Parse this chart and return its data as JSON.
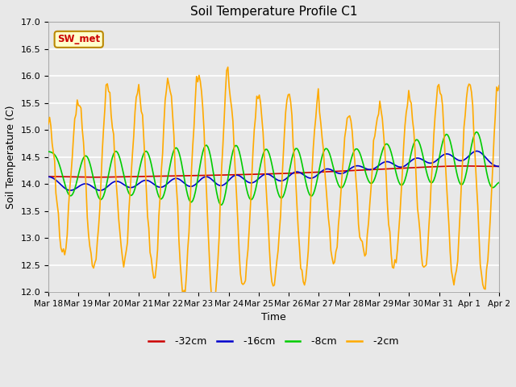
{
  "title": "Soil Temperature Profile C1",
  "xlabel": "Time",
  "ylabel": "Soil Temperature (C)",
  "ylim": [
    12.0,
    17.0
  ],
  "yticks": [
    12.0,
    12.5,
    13.0,
    13.5,
    14.0,
    14.5,
    15.0,
    15.5,
    16.0,
    16.5,
    17.0
  ],
  "x_labels": [
    "Mar 18",
    "Mar 19",
    "Mar 20",
    "Mar 21",
    "Mar 22",
    "Mar 23",
    "Mar 24",
    "Mar 25",
    "Mar 26",
    "Mar 27",
    "Mar 28",
    "Mar 29",
    "Mar 30",
    "Mar 31",
    "Apr 1",
    "Apr 2"
  ],
  "colors": {
    "-32cm": "#cc0000",
    "-16cm": "#0000cc",
    "-8cm": "#00cc00",
    "-2cm": "#ffaa00"
  },
  "legend_label": "SW_met",
  "legend_bg": "#ffffcc",
  "legend_edge": "#bb8800",
  "legend_text": "#cc0000",
  "plot_bg": "#e8e8e8",
  "fig_bg": "#e8e8e8",
  "grid_color": "#ffffff"
}
